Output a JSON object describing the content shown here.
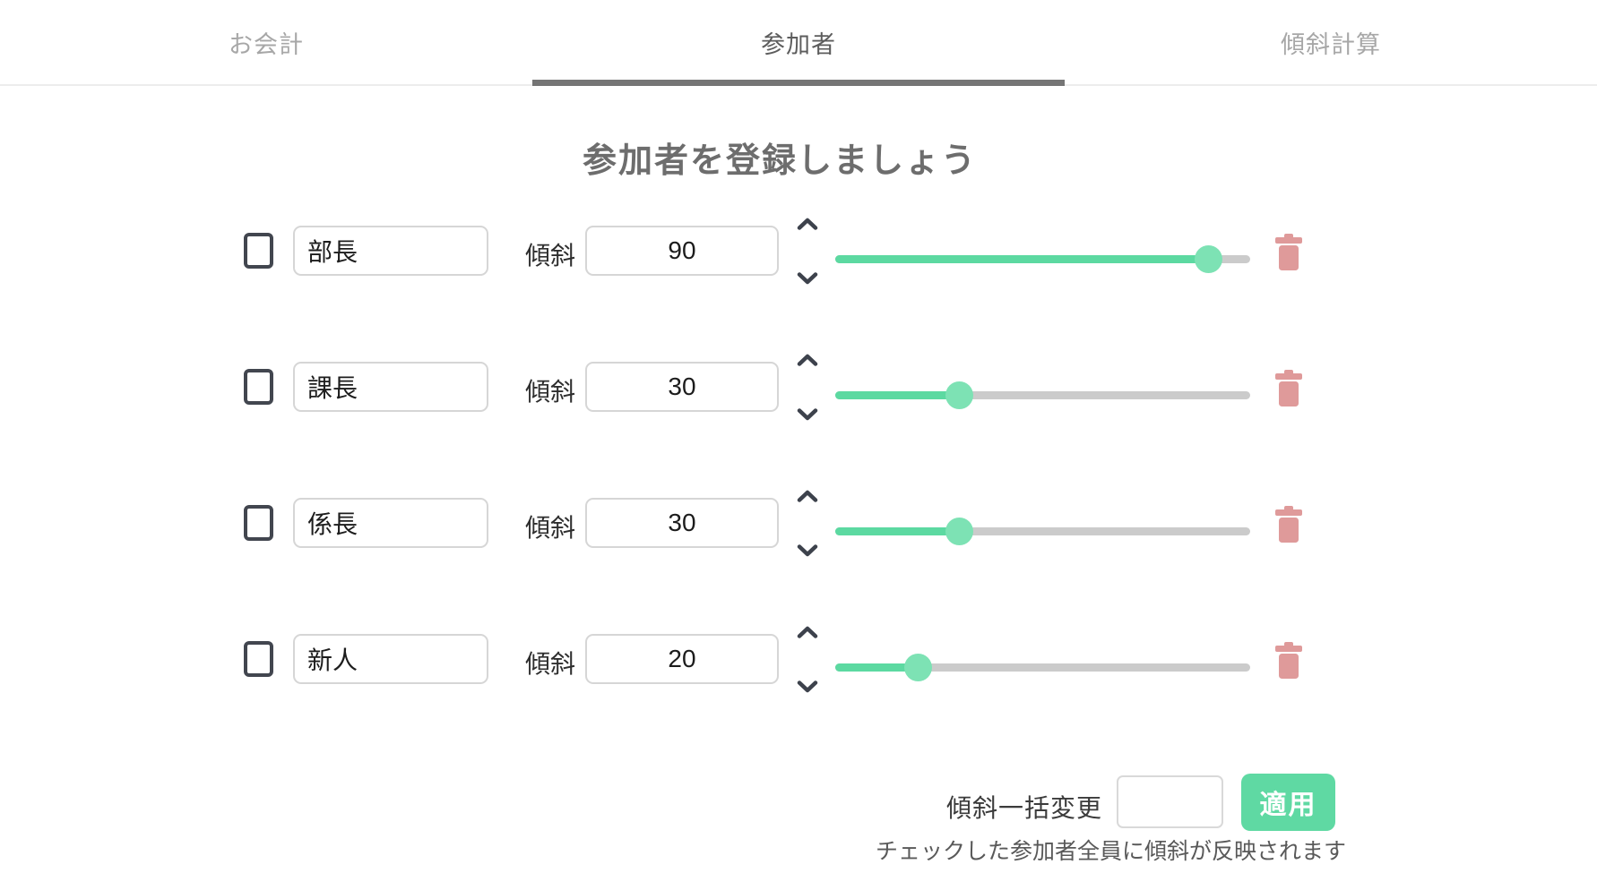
{
  "tabs": [
    {
      "label": "お会計",
      "active": false
    },
    {
      "label": "参加者",
      "active": true
    },
    {
      "label": "傾斜計算",
      "active": false
    }
  ],
  "title": "参加者を登録しましょう",
  "participants": [
    {
      "name": "部長",
      "slope_label": "傾斜",
      "slope": 90,
      "checked": false
    },
    {
      "name": "課長",
      "slope_label": "傾斜",
      "slope": 30,
      "checked": false
    },
    {
      "name": "係長",
      "slope_label": "傾斜",
      "slope": 30,
      "checked": false
    },
    {
      "name": "新人",
      "slope_label": "傾斜",
      "slope": 20,
      "checked": false
    }
  ],
  "bulk": {
    "label": "傾斜一括変更",
    "input_value": "",
    "apply_label": "適用",
    "note": "チェックした参加者全員に傾斜が反映されます"
  },
  "colors": {
    "accent_green": "#5cd9a1",
    "knob_green": "#7de2b4",
    "button_green": "#5fd9a3",
    "track_gray": "#cbcbcb",
    "trash_pink": "#df9a9a",
    "checkbox_dark": "#42464f",
    "active_tab_underline": "#757575"
  }
}
